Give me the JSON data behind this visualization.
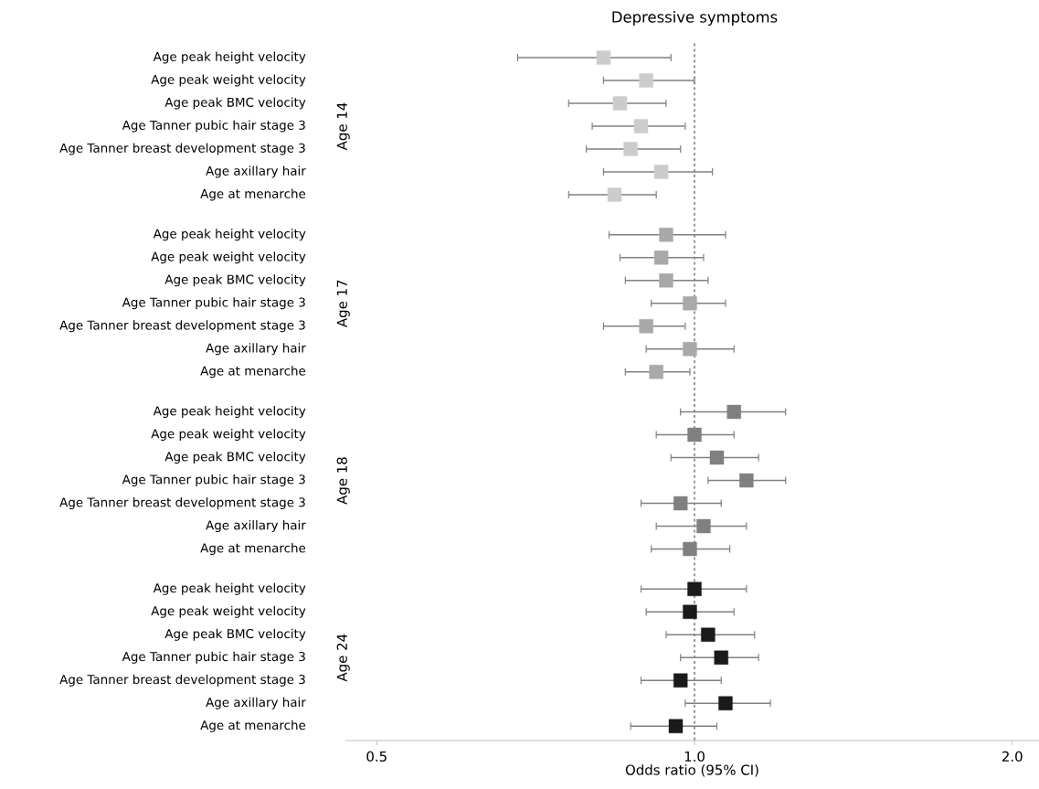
{
  "chart_data": {
    "type": "scatter",
    "orientation": "horizontal",
    "title": "Depressive symptoms",
    "xlabel": "Odds ratio (95% CI)",
    "categories": [
      "Age peak height velocity",
      "Age peak weight velocity",
      "Age peak BMC velocity",
      "Age Tanner pubic hair stage 3",
      "Age Tanner breast development stage 3",
      "Age axillary hair",
      "Age at menarche",
      "Age peak height velocity",
      "Age peak weight velocity",
      "Age peak BMC velocity",
      "Age Tanner pubic hair stage 3",
      "Age Tanner breast development stage 3",
      "Age axillary hair",
      "Age at menarche",
      "Age peak height velocity",
      "Age peak weight velocity",
      "Age peak BMC velocity",
      "Age Tanner pubic hair stage 3",
      "Age Tanner breast development stage 3",
      "Age axillary hair",
      "Age at menarche",
      "Age peak height velocity",
      "Age peak weight velocity",
      "Age peak BMC velocity",
      "Age Tanner pubic hair stage 3",
      "Age Tanner breast development stage 3",
      "Age axillary hair",
      "Age at menarche"
    ],
    "values": [
      0.82,
      0.9,
      0.85,
      0.89,
      0.87,
      0.93,
      0.84,
      0.94,
      0.93,
      0.94,
      0.99,
      0.9,
      0.99,
      0.92,
      1.09,
      1.0,
      1.05,
      1.12,
      0.97,
      1.02,
      0.99,
      1.0,
      0.99,
      1.03,
      1.06,
      0.97,
      1.07,
      0.96
    ],
    "errors": [
      [
        0.68,
        0.95
      ],
      [
        0.82,
        1.0
      ],
      [
        0.76,
        0.94
      ],
      [
        0.8,
        0.98
      ],
      [
        0.79,
        0.97
      ],
      [
        0.82,
        1.04
      ],
      [
        0.76,
        0.92
      ],
      [
        0.83,
        1.07
      ],
      [
        0.85,
        1.02
      ],
      [
        0.86,
        1.03
      ],
      [
        0.91,
        1.07
      ],
      [
        0.82,
        0.98
      ],
      [
        0.9,
        1.09
      ],
      [
        0.86,
        0.99
      ],
      [
        0.97,
        1.22
      ],
      [
        0.92,
        1.09
      ],
      [
        0.95,
        1.15
      ],
      [
        1.03,
        1.22
      ],
      [
        0.89,
        1.06
      ],
      [
        0.92,
        1.12
      ],
      [
        0.91,
        1.08
      ],
      [
        0.89,
        1.12
      ],
      [
        0.9,
        1.09
      ],
      [
        0.94,
        1.14
      ],
      [
        0.97,
        1.15
      ],
      [
        0.89,
        1.06
      ],
      [
        0.98,
        1.18
      ],
      [
        0.87,
        1.05
      ]
    ],
    "colors": [
      "#cccccc",
      "#cccccc",
      "#cccccc",
      "#cccccc",
      "#cccccc",
      "#cccccc",
      "#cccccc",
      "#a9a9a9",
      "#a9a9a9",
      "#a9a9a9",
      "#a9a9a9",
      "#a9a9a9",
      "#a9a9a9",
      "#a9a9a9",
      "#808080",
      "#808080",
      "#808080",
      "#808080",
      "#808080",
      "#808080",
      "#808080",
      "#1a1a1a",
      "#1a1a1a",
      "#1a1a1a",
      "#1a1a1a",
      "#1a1a1a",
      "#1a1a1a",
      "#1a1a1a"
    ],
    "annotations": [
      "Age 14",
      "Age 17",
      "Age 18",
      "Age 24"
    ],
    "xlim": [
      0.467,
      2.12
    ],
    "xticks": [
      0.5,
      {
        "value": 1,
        "label": "1.0"
      },
      {
        "value": 2,
        "label": "2.0"
      }
    ],
    "log": "x",
    "marker": "square",
    "ref_lines": [
      {
        "axis": "x",
        "value": 1,
        "line_style": "dashed",
        "color": "#333333"
      }
    ]
  }
}
